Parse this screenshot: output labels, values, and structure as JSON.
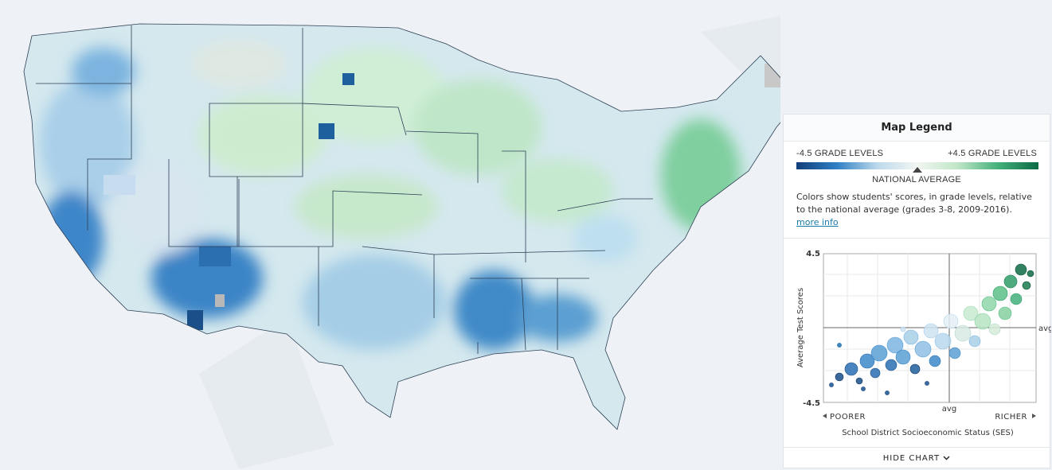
{
  "legend": {
    "title": "Map Legend",
    "low_label": "-4.5 GRADE LEVELS",
    "high_label": "+4.5 GRADE LEVELS",
    "midpoint_label": "NATIONAL AVERAGE",
    "description": "Colors show students' scores, in grade levels, relative to the national average (grades 3-8, 2009-2016).",
    "link": "more info"
  },
  "chart": {
    "y_axis_label": "Average Test Scores",
    "y_max_label": "4.5",
    "y_min_label": "-4.5",
    "y_avg_label": "avg",
    "x_avg_label": "avg",
    "x_low_label": "POORER",
    "x_high_label": "RICHER",
    "x_axis_label": "School District Socioeconomic Status (SES)"
  },
  "toggle": "HIDE CHART"
}
